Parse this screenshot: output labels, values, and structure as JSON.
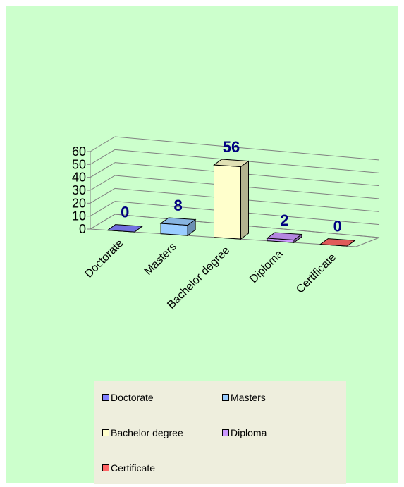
{
  "chart_data": {
    "type": "bar",
    "variant": "3d-column",
    "categories": [
      "Doctorate",
      "Masters",
      "Bachelor degree",
      "Diploma",
      "Certificate"
    ],
    "values": [
      0,
      8,
      56,
      2,
      0
    ],
    "ylim": [
      0,
      60
    ],
    "yticks": [
      "0",
      "10",
      "20",
      "30",
      "40",
      "50",
      "60"
    ],
    "data_labels": [
      "0",
      "8",
      "56",
      "2",
      "0"
    ],
    "colors": [
      "#8080ff",
      "#99ccff",
      "#ffffcc",
      "#cc99ff",
      "#ff6666"
    ],
    "grid": true,
    "legend_position": "bottom",
    "legend": [
      "Doctorate",
      "Masters",
      "Bachelor degree",
      "Diploma",
      "Certificate"
    ],
    "background": "#ccffcc",
    "legend_background": "#eeeedd",
    "label_color": "#000080"
  }
}
